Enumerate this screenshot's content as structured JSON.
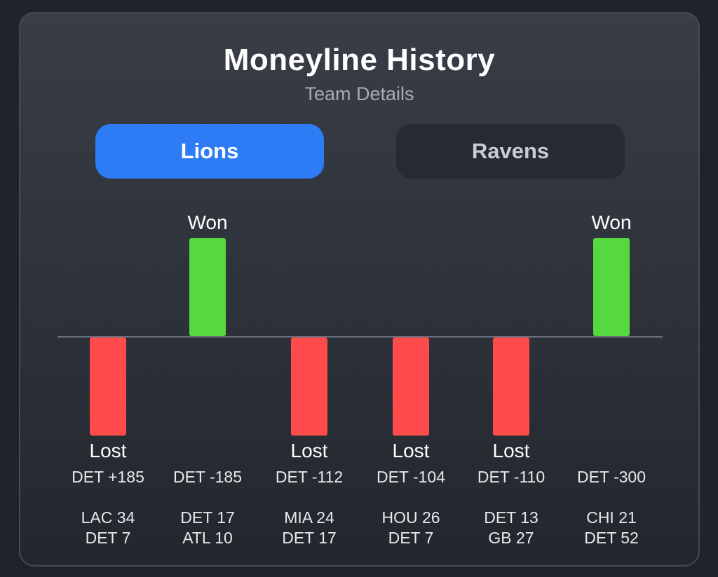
{
  "header": {
    "title": "Moneyline History",
    "subtitle": "Team Details"
  },
  "tabs": [
    {
      "label": "Lions",
      "active": true
    },
    {
      "label": "Ravens",
      "active": false
    }
  ],
  "colors": {
    "won": "#56d93f",
    "lost": "#ff4b4b",
    "accent": "#2d7cf6",
    "baseline": "#6a7080"
  },
  "chart_data": {
    "type": "bar",
    "title": "",
    "xlabel": "",
    "ylabel": "",
    "categories": [
      {
        "odds": "DET +185",
        "score_line_1": "LAC 34",
        "score_line_2": "DET 7"
      },
      {
        "odds": "DET -185",
        "score_line_1": "DET 17",
        "score_line_2": "ATL 10"
      },
      {
        "odds": "DET -112",
        "score_line_1": "MIA 24",
        "score_line_2": "DET 17"
      },
      {
        "odds": "DET -104",
        "score_line_1": "HOU 26",
        "score_line_2": "DET 7"
      },
      {
        "odds": "DET -110",
        "score_line_1": "DET 13",
        "score_line_2": "GB 27"
      },
      {
        "odds": "DET -300",
        "score_line_1": "CHI 21",
        "score_line_2": "DET 52"
      }
    ],
    "results": [
      "Lost",
      "Won",
      "Lost",
      "Lost",
      "Lost",
      "Won"
    ],
    "values": [
      -1,
      1,
      -1,
      -1,
      -1,
      1
    ],
    "ylim": [
      -1,
      1
    ],
    "grid": false,
    "legend": "none"
  }
}
